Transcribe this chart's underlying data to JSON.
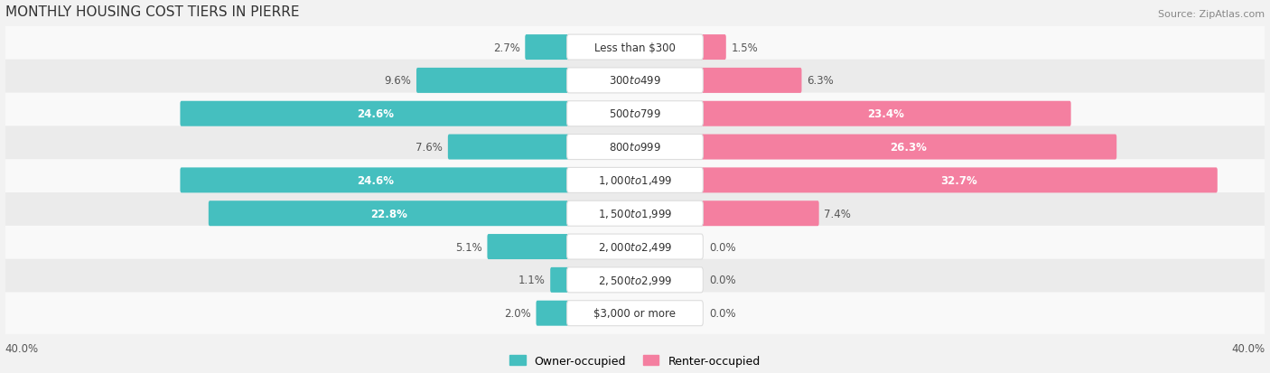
{
  "title": "MONTHLY HOUSING COST TIERS IN PIERRE",
  "source": "Source: ZipAtlas.com",
  "categories": [
    "Less than $300",
    "$300 to $499",
    "$500 to $799",
    "$800 to $999",
    "$1,000 to $1,499",
    "$1,500 to $1,999",
    "$2,000 to $2,499",
    "$2,500 to $2,999",
    "$3,000 or more"
  ],
  "owner_values": [
    2.7,
    9.6,
    24.6,
    7.6,
    24.6,
    22.8,
    5.1,
    1.1,
    2.0
  ],
  "renter_values": [
    1.5,
    6.3,
    23.4,
    26.3,
    32.7,
    7.4,
    0.0,
    0.0,
    0.0
  ],
  "owner_color": "#45BFBF",
  "renter_color": "#F47FA0",
  "owner_label": "Owner-occupied",
  "renter_label": "Renter-occupied",
  "max_value": 40.0,
  "axis_label_left": "40.0%",
  "axis_label_right": "40.0%",
  "bg_color": "#f2f2f2",
  "row_bg_colors": [
    "#f9f9f9",
    "#ebebeb"
  ],
  "title_font_size": 11,
  "source_font_size": 8,
  "bar_label_font_size": 8.5,
  "cat_label_font_size": 8.5
}
